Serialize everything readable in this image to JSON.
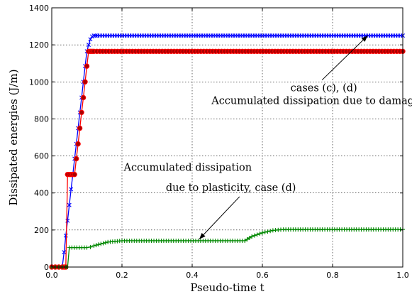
{
  "chart_data": {
    "type": "line",
    "title": "",
    "xlabel": "Pseudo-time t",
    "ylabel": "Dissipated energies (J/m)",
    "xlim": [
      0,
      1
    ],
    "ylim": [
      0,
      1400
    ],
    "xticks": [
      0.0,
      0.2,
      0.4,
      0.6,
      0.8,
      1.0
    ],
    "xtick_labels": [
      "0.0",
      "0.2",
      "0.4",
      "0.6",
      "0.8",
      "1.0"
    ],
    "yticks": [
      0,
      200,
      400,
      600,
      800,
      1000,
      1200,
      1400
    ],
    "ytick_labels": [
      "0",
      "200",
      "400",
      "600",
      "800",
      "1000",
      "1200",
      "1400"
    ],
    "grid": true,
    "series": [
      {
        "color": "#0000ff",
        "marker": "x",
        "x": [
          0.0,
          0.01,
          0.02,
          0.03,
          0.035,
          0.04,
          0.045,
          0.05,
          0.055,
          0.06,
          0.065,
          0.07,
          0.075,
          0.08,
          0.085,
          0.09,
          0.095,
          0.1,
          0.105,
          0.11,
          0.115,
          0.12,
          0.125,
          0.13,
          1.0
        ],
        "y": [
          0,
          0,
          0,
          0,
          80,
          170,
          250,
          335,
          420,
          500,
          585,
          665,
          750,
          835,
          915,
          1000,
          1085,
          1165,
          1200,
          1230,
          1245,
          1250,
          1250,
          1250,
          1250
        ]
      },
      {
        "color": "#ff0000",
        "marker": "o",
        "marker_fill": "#aa0000",
        "x": [
          0.0,
          0.01,
          0.02,
          0.03,
          0.035,
          0.04,
          0.045,
          0.05,
          0.055,
          0.06,
          0.065,
          0.07,
          0.075,
          0.08,
          0.085,
          0.09,
          0.095,
          0.1,
          0.105,
          0.11,
          0.115,
          0.12,
          1.0
        ],
        "y": [
          0,
          0,
          0,
          0,
          0,
          0,
          500,
          500,
          500,
          500,
          500,
          585,
          665,
          750,
          835,
          915,
          1000,
          1085,
          1165,
          1165,
          1165,
          1165,
          1165
        ]
      },
      {
        "color": "#008800",
        "marker": "+",
        "x": [
          0.0,
          0.01,
          0.02,
          0.03,
          0.04,
          0.045,
          0.05,
          0.1,
          0.11,
          0.12,
          0.14,
          0.16,
          0.2,
          0.55,
          0.57,
          0.6,
          0.63,
          0.66,
          1.0
        ],
        "y": [
          0,
          0,
          0,
          0,
          0,
          0,
          105,
          105,
          108,
          115,
          125,
          135,
          142,
          142,
          165,
          185,
          198,
          203,
          203
        ]
      }
    ],
    "annotations": [
      {
        "text": "cases (c), (d)",
        "x": 0.68,
        "y": 950,
        "arrow_to": [
          0.9,
          1250
        ]
      },
      {
        "text": "Accumulated dissipation due to damage",
        "x": 0.455,
        "y": 880
      },
      {
        "text": "Accumulated dissipation",
        "x": 0.205,
        "y": 520
      },
      {
        "text": "due to plasticity, case (d)",
        "x": 0.325,
        "y": 410,
        "arrow_to": [
          0.42,
          150
        ]
      }
    ]
  }
}
